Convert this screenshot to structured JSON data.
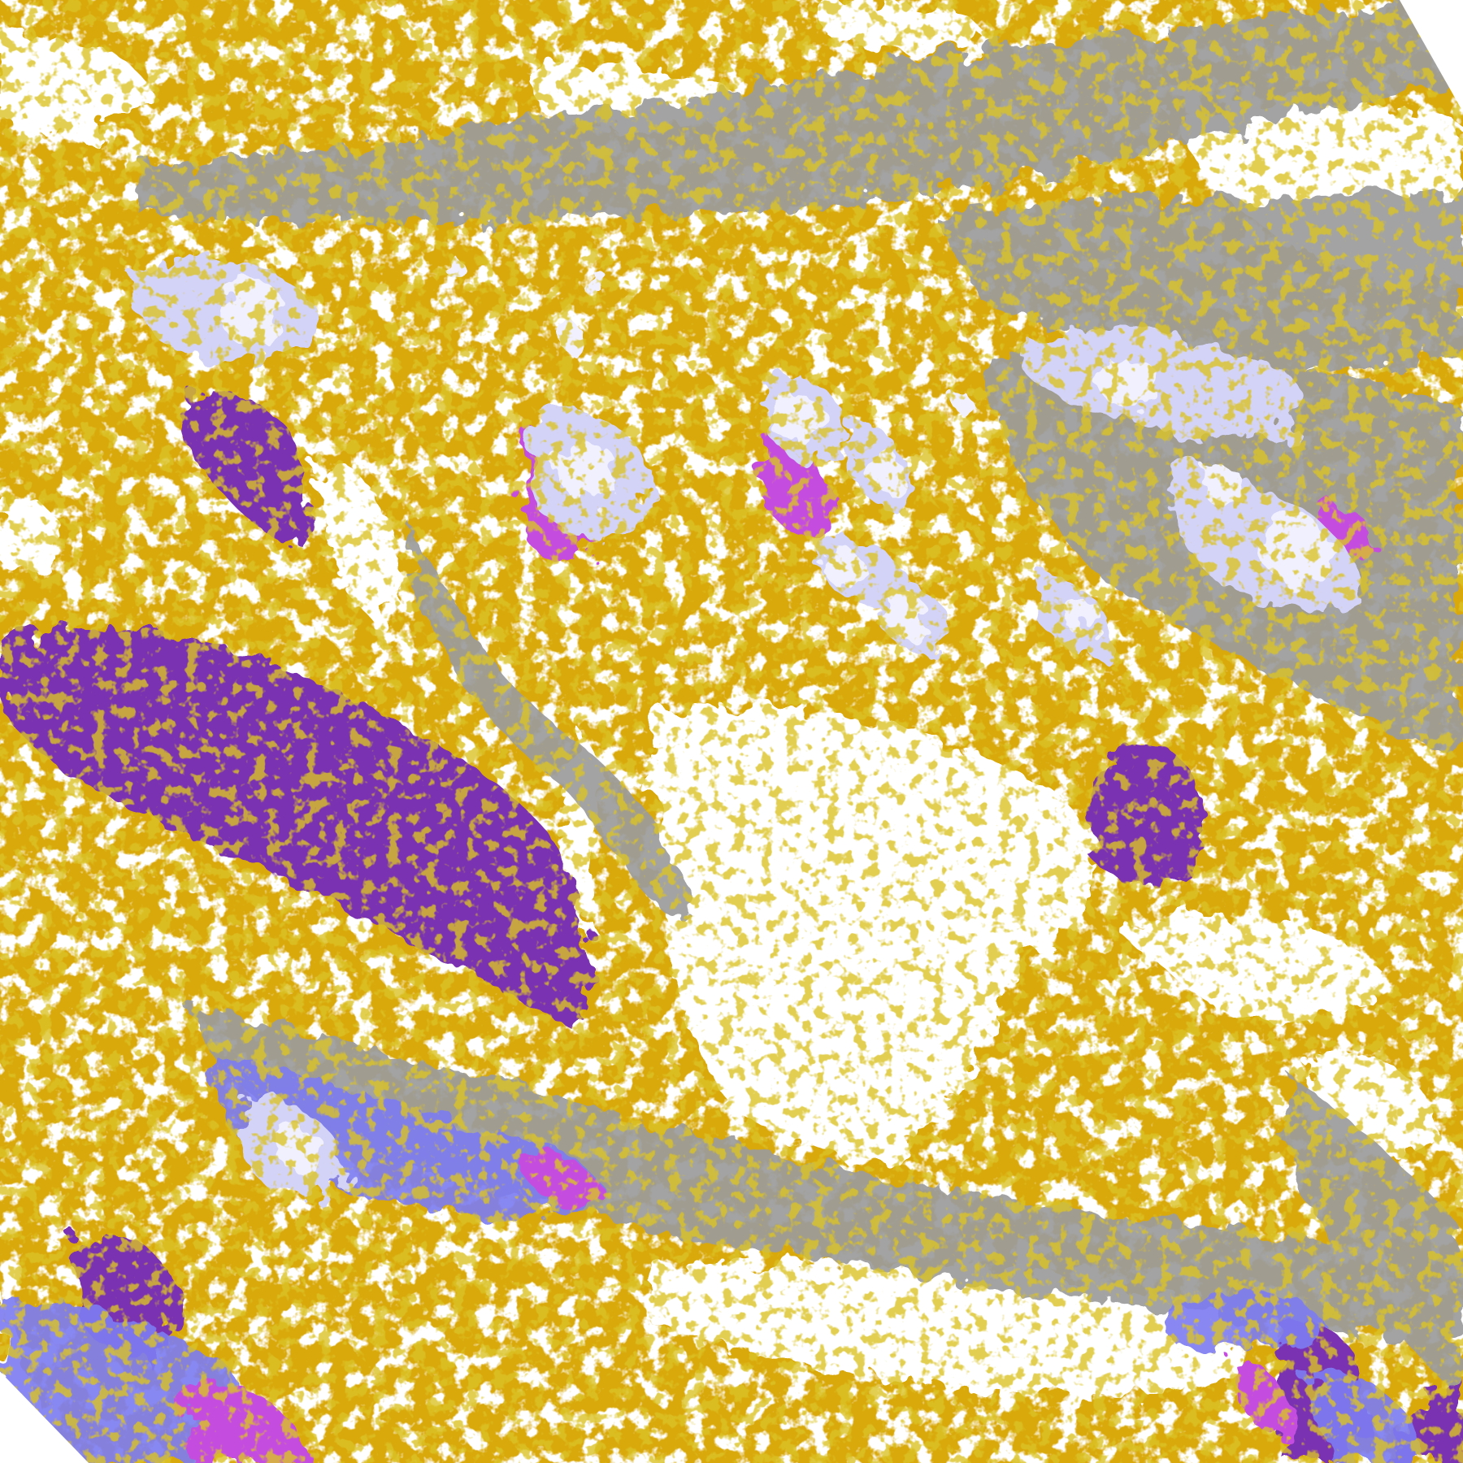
{
  "image": {
    "kind": "satellite cloud-type classification composite",
    "palette": {
      "clear": "#ffffff",
      "low_cloud": "#d9a90c",
      "low_cloud_dark": "#b48b06",
      "mid_cloud": "#9c9c9c",
      "mid_cloud_dark": "#7e7e86",
      "high_thin": "#7d7cf2",
      "high_thick": "#d3d3f8",
      "deep_convection": "#f0f0ff",
      "stratus_fog": "#7a33b2",
      "overshooting": "#c44ee0"
    }
  }
}
